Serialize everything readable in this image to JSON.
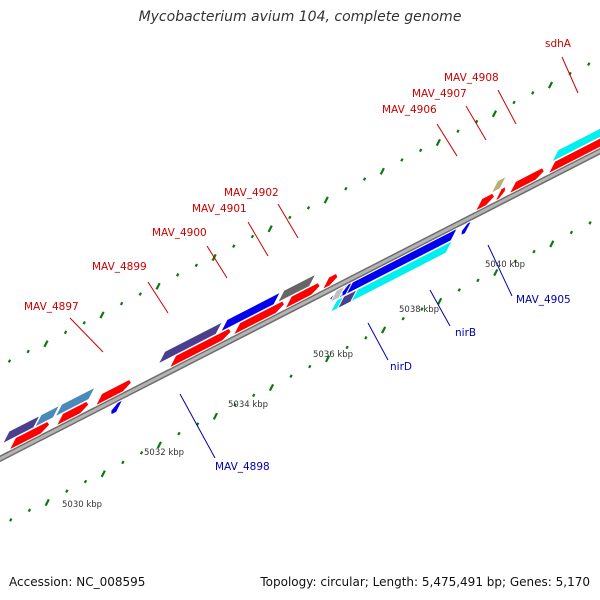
{
  "title": "Mycobacterium avium 104, complete genome",
  "footer": {
    "accession": "Accession: NC_008595",
    "topology": "Topology: circular; Length: 5,475,491 bp; Genes: 5,170"
  },
  "colors": {
    "backbone": "#8a8a8a",
    "tick": "#0a7a0a",
    "label_forward": "#cc0000",
    "label_reverse": "#0000aa",
    "red": "#ff0000",
    "navy": "#4a3f8f",
    "steel": "#4a8ab8",
    "blue": "#0000ee",
    "cyan": "#00f0f0",
    "olive": "#b8b070",
    "gray": "#666666",
    "lightgray": "#c0c0c0"
  },
  "ruler": {
    "unit": "kbp",
    "labels": [
      "5030 kbp",
      "5032 kbp",
      "5034 kbp",
      "5036 kbp",
      "5038 kbp",
      "5040 kbp"
    ]
  },
  "genes": {
    "labeled": [
      {
        "name": "MAV_4897",
        "strand": "forward"
      },
      {
        "name": "MAV_4898",
        "strand": "reverse"
      },
      {
        "name": "MAV_4899",
        "strand": "forward"
      },
      {
        "name": "MAV_4900",
        "strand": "forward"
      },
      {
        "name": "MAV_4901",
        "strand": "forward"
      },
      {
        "name": "MAV_4902",
        "strand": "forward"
      },
      {
        "name": "nirD",
        "strand": "reverse"
      },
      {
        "name": "nirB",
        "strand": "reverse"
      },
      {
        "name": "MAV_4905",
        "strand": "reverse"
      },
      {
        "name": "MAV_4906",
        "strand": "forward"
      },
      {
        "name": "MAV_4907",
        "strand": "forward"
      },
      {
        "name": "MAV_4908",
        "strand": "forward"
      },
      {
        "name": "sdhA",
        "strand": "forward"
      }
    ]
  }
}
